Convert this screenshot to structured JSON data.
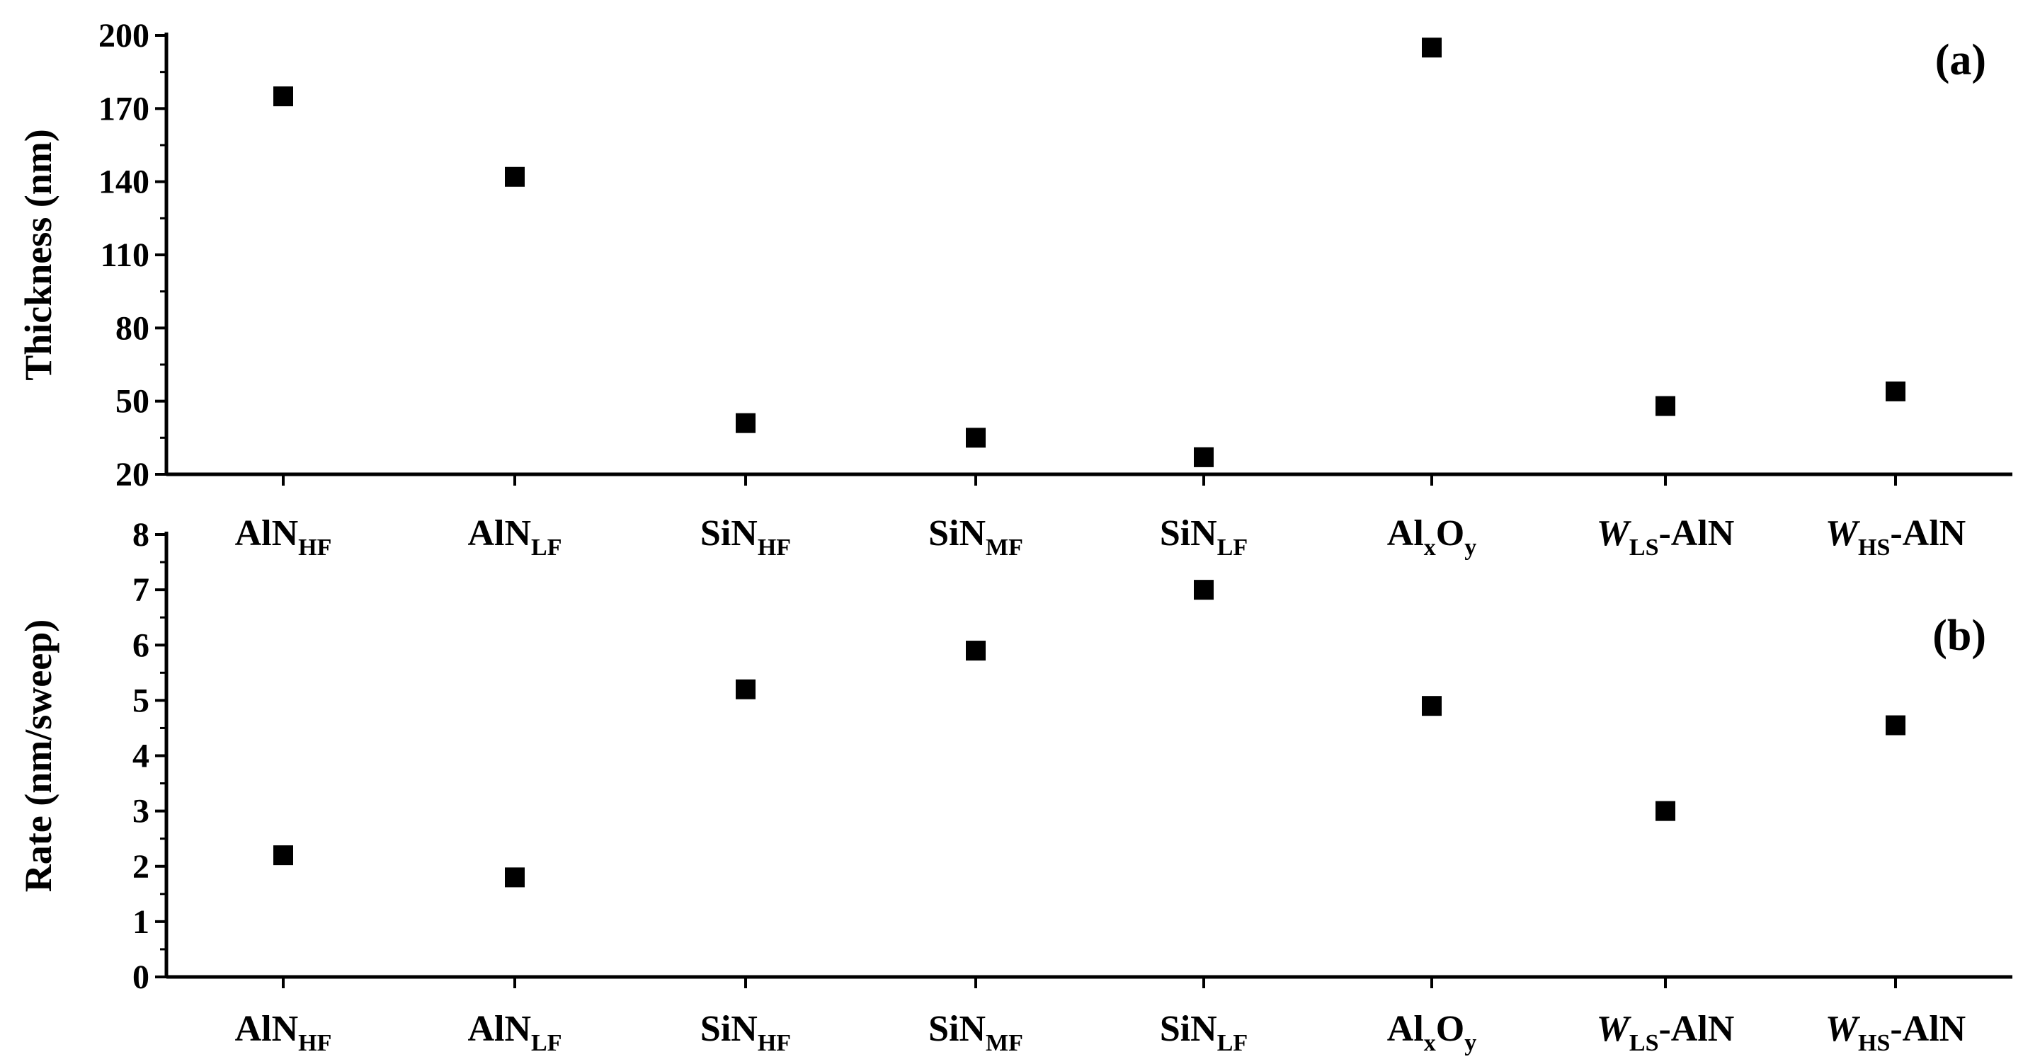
{
  "chart_data": [
    {
      "type": "scatter",
      "panel_label": "(a)",
      "ylabel": "Thickness (nm)",
      "ylim": [
        20,
        200
      ],
      "yticks": [
        20,
        50,
        80,
        110,
        140,
        170,
        200
      ],
      "categories": [
        {
          "base": "AlN",
          "sub": "HF"
        },
        {
          "base": "AlN",
          "sub": "LF"
        },
        {
          "base": "SiN",
          "sub": "HF"
        },
        {
          "base": "SiN",
          "sub": "MF"
        },
        {
          "base": "SiN",
          "sub": "LF"
        },
        {
          "base": "Al",
          "sub": "x",
          "base2": "O",
          "sub2": "y"
        },
        {
          "base": "W",
          "sub": "LS",
          "suffix": "-AlN"
        },
        {
          "base": "W",
          "sub": "HS",
          "suffix": "-AlN"
        }
      ],
      "values": [
        175,
        142,
        41,
        35,
        27,
        195,
        48,
        54
      ],
      "grid": false,
      "marker": "square",
      "color": "#000000"
    },
    {
      "type": "scatter",
      "panel_label": "(b)",
      "ylabel": "Rate (nm/sweep)",
      "ylim": [
        0,
        8
      ],
      "yticks": [
        0,
        1,
        2,
        3,
        4,
        5,
        6,
        7,
        8
      ],
      "categories": [
        {
          "base": "AlN",
          "sub": "HF"
        },
        {
          "base": "AlN",
          "sub": "LF"
        },
        {
          "base": "SiN",
          "sub": "HF"
        },
        {
          "base": "SiN",
          "sub": "MF"
        },
        {
          "base": "SiN",
          "sub": "LF"
        },
        {
          "base": "Al",
          "sub": "x",
          "base2": "O",
          "sub2": "y"
        },
        {
          "base": "W",
          "sub": "LS",
          "suffix": "-AlN"
        },
        {
          "base": "W",
          "sub": "HS",
          "suffix": "-AlN"
        }
      ],
      "values": [
        2.2,
        1.8,
        5.2,
        5.9,
        7.0,
        4.9,
        3.0,
        4.55
      ],
      "grid": false,
      "marker": "square",
      "color": "#000000"
    }
  ]
}
